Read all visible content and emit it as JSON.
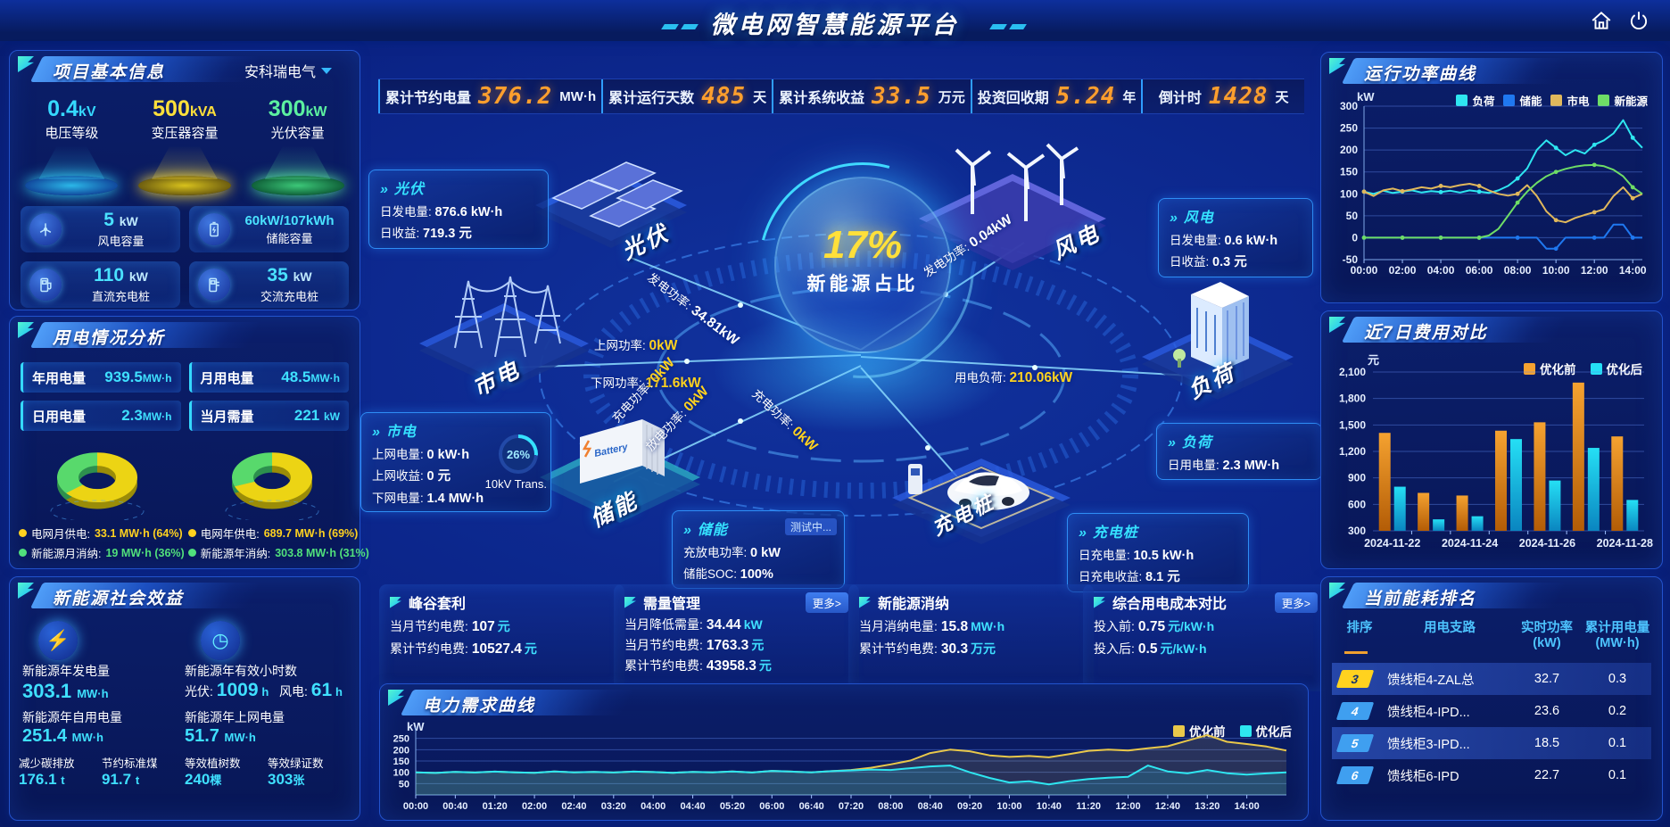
{
  "header": {
    "title": "微电网智慧能源平台"
  },
  "topbar": {
    "kpis": [
      {
        "label": "累计节约电量",
        "value": "376.2",
        "unit": "MW·h"
      },
      {
        "label": "累计运行天数",
        "value": "485",
        "unit": "天"
      },
      {
        "label": "累计系统收益",
        "value": "33.5",
        "unit": "万元"
      },
      {
        "label": "投资回收期",
        "value": "5.24",
        "unit": "年"
      },
      {
        "label": "倒计时",
        "value": "1428",
        "unit": "天"
      }
    ]
  },
  "project": {
    "title": "项目基本信息",
    "company": "安科瑞电气",
    "pedestals": [
      {
        "value": "0.4",
        "unit": "kV",
        "label": "电压等级",
        "color": "#35d9ff"
      },
      {
        "value": "500",
        "unit": "kVA",
        "label": "变压器容量",
        "color": "#ffe03a"
      },
      {
        "value": "300",
        "unit": "kW",
        "label": "光伏容量",
        "color": "#5cf0a0"
      }
    ],
    "cards": [
      {
        "value": "5",
        "unit": "kW",
        "label": "风电容量"
      },
      {
        "value": "60kW/107kWh",
        "unit": "",
        "label": "储能容量"
      },
      {
        "value": "110",
        "unit": "kW",
        "label": "直流充电桩"
      },
      {
        "value": "35",
        "unit": "kW",
        "label": "交流充电桩"
      }
    ]
  },
  "usage": {
    "title": "用电情况分析",
    "stats": [
      {
        "label": "年用电量",
        "value": "939.5",
        "unit": "MW·h"
      },
      {
        "label": "月用电量",
        "value": "48.5",
        "unit": "MW·h"
      },
      {
        "label": "日用电量",
        "value": "2.3",
        "unit": "MW·h"
      },
      {
        "label": "当月需量",
        "value": "221",
        "unit": "kW"
      }
    ],
    "donuts": [
      {
        "grid_pct": 64,
        "legend": [
          {
            "label": "电网月供电:",
            "value": "33.1 MW·h (64%)",
            "color": "#ffd21f"
          },
          {
            "label": "新能源月消纳:",
            "value": "19 MW·h (36%)",
            "color": "#51e07c"
          }
        ]
      },
      {
        "grid_pct": 69,
        "legend": [
          {
            "label": "电网年供电:",
            "value": "689.7 MW·h (69%)",
            "color": "#ffd21f"
          },
          {
            "label": "新能源年消纳:",
            "value": "303.8 MW·h (31%)",
            "color": "#51e07c"
          }
        ]
      }
    ]
  },
  "benefit": {
    "title": "新能源社会效益",
    "gen": {
      "label": "新能源年发电量",
      "value": "303.1",
      "unit": "MW·h"
    },
    "hours": {
      "label": "新能源年有效小时数",
      "pv_label": "光伏:",
      "pv_value": "1009",
      "pv_unit": "h",
      "wind_label": "风电:",
      "wind_value": "61",
      "wind_unit": "h"
    },
    "self_use": {
      "label": "新能源年自用电量",
      "value": "251.4",
      "unit": "MW·h"
    },
    "to_grid": {
      "label": "新能源年上网电量",
      "value": "51.7",
      "unit": "MW·h"
    },
    "small": [
      {
        "label": "减少碳排放",
        "value": "176.1",
        "unit": "t"
      },
      {
        "label": "节约标准煤",
        "value": "91.7",
        "unit": "t"
      },
      {
        "label": "等效植树数",
        "value": "240",
        "unit": "棵"
      },
      {
        "label": "等效绿证数",
        "value": "303",
        "unit": "张"
      }
    ]
  },
  "diagram": {
    "center_pct": "17%",
    "center_label": "新能源占比",
    "nodes": {
      "pv": "光伏",
      "wind": "风电",
      "grid": "市电",
      "load": "负荷",
      "storage": "储能",
      "charger": "充电桩"
    },
    "storage_logo": "Battery",
    "pv_box": {
      "title": "光伏",
      "r1l": "日发电量:",
      "r1v": "876.6 kW·h",
      "r2l": "日收益:",
      "r2v": "719.3 元"
    },
    "wind_box": {
      "title": "风电",
      "r1l": "日发电量:",
      "r1v": "0.6 kW·h",
      "r2l": "日收益:",
      "r2v": "0.3 元"
    },
    "grid_box": {
      "title": "市电",
      "r1l": "上网电量:",
      "r1v": "0 kW·h",
      "r2l": "上网收益:",
      "r2v": "0 元",
      "r3l": "下网电量:",
      "r3v": "1.4 MW·h",
      "gauge_pct": "26%",
      "gauge_label": "10kV Trans."
    },
    "load_box": {
      "title": "负荷",
      "r1l": "日用电量:",
      "r1v": "2.3 MW·h"
    },
    "storage_box": {
      "title": "储能",
      "badge": "测试中...",
      "r1l": "充放电功率:",
      "r1v": "0 kW",
      "r2l": "储能SOC:",
      "r2v": "100%"
    },
    "charger_box": {
      "title": "充电桩",
      "r1l": "日充电量:",
      "r1v": "10.5 kW·h",
      "r2l": "日充电收益:",
      "r2v": "8.1 元"
    },
    "flows": {
      "pv_gen": {
        "label": "发电功率:",
        "value": "34.81kW"
      },
      "up": {
        "label": "上网功率:",
        "value": "0kW"
      },
      "down": {
        "label": "下网功率:",
        "value": "171.6kW"
      },
      "wind_gen": {
        "label": "发电功率:",
        "value": "0.04kW"
      },
      "load": {
        "label": "用电负荷:",
        "value": "210.06kW"
      },
      "charge": {
        "label": "充电功率:",
        "value": "0kW"
      },
      "discharge": {
        "label": "放电功率:",
        "value": "0kW"
      },
      "charger": {
        "label": "充电功率:",
        "value": "0kW"
      }
    }
  },
  "cards": [
    {
      "title": "峰谷套利",
      "more": "",
      "rows": [
        {
          "label": "当月节约电费:",
          "value": "107",
          "unit": "元"
        },
        {
          "label": "累计节约电费:",
          "value": "10527.4",
          "unit": "元"
        }
      ]
    },
    {
      "title": "需量管理",
      "more": "更多>",
      "rows": [
        {
          "label": "当月降低需量:",
          "value": "34.44",
          "unit": "kW"
        },
        {
          "label": "当月节约电费:",
          "value": "1763.3",
          "unit": "元"
        },
        {
          "label": "累计节约电费:",
          "value": "43958.3",
          "unit": "元"
        }
      ]
    },
    {
      "title": "新能源消纳",
      "more": "",
      "rows": [
        {
          "label": "当月消纳电量:",
          "value": "15.8",
          "unit": "MW·h"
        },
        {
          "label": "累计节约电费:",
          "value": "30.3",
          "unit": "万元"
        }
      ]
    },
    {
      "title": "综合用电成本对比",
      "more": "更多>",
      "rows": [
        {
          "label": "投入前:",
          "value": "0.75",
          "unit": "元/kW·h"
        },
        {
          "label": "投入后:",
          "value": "0.5",
          "unit": "元/kW·h"
        }
      ]
    }
  ],
  "ranking": {
    "title": "当前能耗排名",
    "columns": [
      {
        "l1": "排序",
        "l2": ""
      },
      {
        "l1": "用电支路",
        "l2": ""
      },
      {
        "l1": "实时功率",
        "l2": "(kW)"
      },
      {
        "l1": "累计用电量",
        "l2": "(MW·h)"
      }
    ],
    "rows": [
      {
        "rank": "3",
        "branch": "馈线柜4-ZAL总",
        "power": "32.7",
        "energy": "0.3",
        "highlight": true,
        "badge": "#ffd21f",
        "badge_text": "#143",
        "text": "#102a70"
      },
      {
        "rank": "4",
        "branch": "馈线柜4-IPD...",
        "power": "23.6",
        "energy": "0.2",
        "highlight": false,
        "badge": "#3f9ff0",
        "badge_text": "#fff",
        "text": "#fff"
      },
      {
        "rank": "5",
        "branch": "馈线柜3-IPD...",
        "power": "18.5",
        "energy": "0.1",
        "highlight": true,
        "badge": "#3f9ff0",
        "badge_text": "#fff",
        "text": "#fff"
      },
      {
        "rank": "6",
        "branch": "馈线柜6-IPD",
        "power": "22.7",
        "energy": "0.1",
        "highlight": false,
        "badge": "#3f9ff0",
        "badge_text": "#fff",
        "text": "#fff"
      }
    ]
  },
  "chart_data": [
    {
      "id": "power",
      "type": "line",
      "title": "运行功率曲线",
      "ylabel": "kW",
      "ylim": [
        -50,
        300
      ],
      "ystep": 50,
      "x_hours_max": 14.5,
      "dt": 0.5,
      "xtick_step_h": 2,
      "xticks": [
        "00:00",
        "02:00",
        "04:00",
        "06:00",
        "08:00",
        "10:00",
        "12:00",
        "14:00"
      ],
      "legend_position": "top",
      "grid": true,
      "series": [
        {
          "name": "负荷",
          "color": "#2ee6f0",
          "values": [
            105,
            100,
            107,
            102,
            105,
            108,
            103,
            106,
            104,
            107,
            103,
            108,
            105,
            102,
            108,
            118,
            135,
            158,
            200,
            222,
            205,
            188,
            200,
            192,
            212,
            222,
            238,
            268,
            228,
            205
          ]
        },
        {
          "name": "储能",
          "color": "#1f78f0",
          "values": [
            0,
            0,
            0,
            0,
            0,
            0,
            0,
            0,
            0,
            0,
            0,
            0,
            0,
            0,
            0,
            0,
            0,
            0,
            0,
            -25,
            -25,
            0,
            0,
            0,
            0,
            0,
            30,
            30,
            0,
            0
          ]
        },
        {
          "name": "市电",
          "color": "#e0b85c",
          "values": [
            105,
            95,
            108,
            112,
            106,
            110,
            115,
            112,
            118,
            115,
            120,
            123,
            118,
            108,
            100,
            96,
            100,
            120,
            95,
            60,
            40,
            35,
            45,
            52,
            58,
            65,
            95,
            115,
            90,
            100
          ]
        },
        {
          "name": "新能源",
          "color": "#6edd66",
          "values": [
            0,
            0,
            0,
            0,
            0,
            0,
            0,
            0,
            0,
            0,
            0,
            0,
            0,
            5,
            20,
            50,
            80,
            105,
            125,
            140,
            150,
            157,
            162,
            165,
            166,
            163,
            155,
            140,
            115,
            100
          ]
        }
      ]
    },
    {
      "id": "cost",
      "type": "bar",
      "title": "近7日费用对比",
      "ylabel": "元",
      "ylim": [
        300,
        2100
      ],
      "ystep": 300,
      "categories": [
        "2024-11-22",
        "2024-11-23",
        "2024-11-24",
        "2024-11-25",
        "2024-11-26",
        "2024-11-27",
        "2024-11-28"
      ],
      "label_every": 2,
      "legend_position": "top-right",
      "grid": true,
      "series": [
        {
          "name": "优化前",
          "color": "#f5a230",
          "color2": "#b35c06",
          "values": [
            1410,
            730,
            700,
            1435,
            1530,
            1980,
            1370
          ]
        },
        {
          "name": "优化后",
          "color": "#25dff5",
          "color2": "#0a85c0",
          "values": [
            800,
            430,
            465,
            1340,
            870,
            1240,
            650
          ]
        }
      ]
    },
    {
      "id": "demand",
      "type": "line",
      "title": "电力需求曲线",
      "ylabel": "kW",
      "ylim": [
        0,
        300
      ],
      "ystep": 50,
      "grid_min": 50,
      "grid_max": 250,
      "x_hours_max": 14.6667,
      "dt": 0.33333,
      "xtick_step_h": 0.66667,
      "xticks": [
        "00:00",
        "00:40",
        "01:20",
        "02:00",
        "02:40",
        "03:20",
        "04:00",
        "04:40",
        "05:20",
        "06:00",
        "06:40",
        "07:20",
        "08:00",
        "08:40",
        "09:20",
        "10:00",
        "10:40",
        "11:20",
        "12:00",
        "12:40",
        "13:20",
        "14:00"
      ],
      "legend_position": "top-right",
      "grid": true,
      "series": [
        {
          "name": "优化前",
          "color": "#e9c84a",
          "fill": "rgba(233,200,74,0.14)",
          "values": [
            100,
            97,
            102,
            99,
            103,
            100,
            98,
            104,
            100,
            102,
            99,
            103,
            101,
            98,
            102,
            100,
            104,
            99,
            106,
            103,
            100,
            105,
            110,
            120,
            135,
            152,
            185,
            200,
            193,
            175,
            168,
            172,
            166,
            180,
            195,
            200,
            196,
            206,
            215,
            240,
            265,
            235,
            225,
            214,
            196
          ]
        },
        {
          "name": "优化后",
          "color": "#2ee6f0",
          "fill": "rgba(46,230,240,0.16)",
          "values": [
            100,
            97,
            102,
            99,
            103,
            100,
            98,
            104,
            100,
            102,
            99,
            103,
            101,
            98,
            102,
            100,
            104,
            99,
            106,
            103,
            100,
            105,
            108,
            112,
            110,
            118,
            126,
            130,
            100,
            75,
            55,
            60,
            46,
            60,
            70,
            76,
            80,
            130,
            104,
            95,
            110,
            96,
            90,
            95,
            100
          ]
        }
      ]
    }
  ]
}
